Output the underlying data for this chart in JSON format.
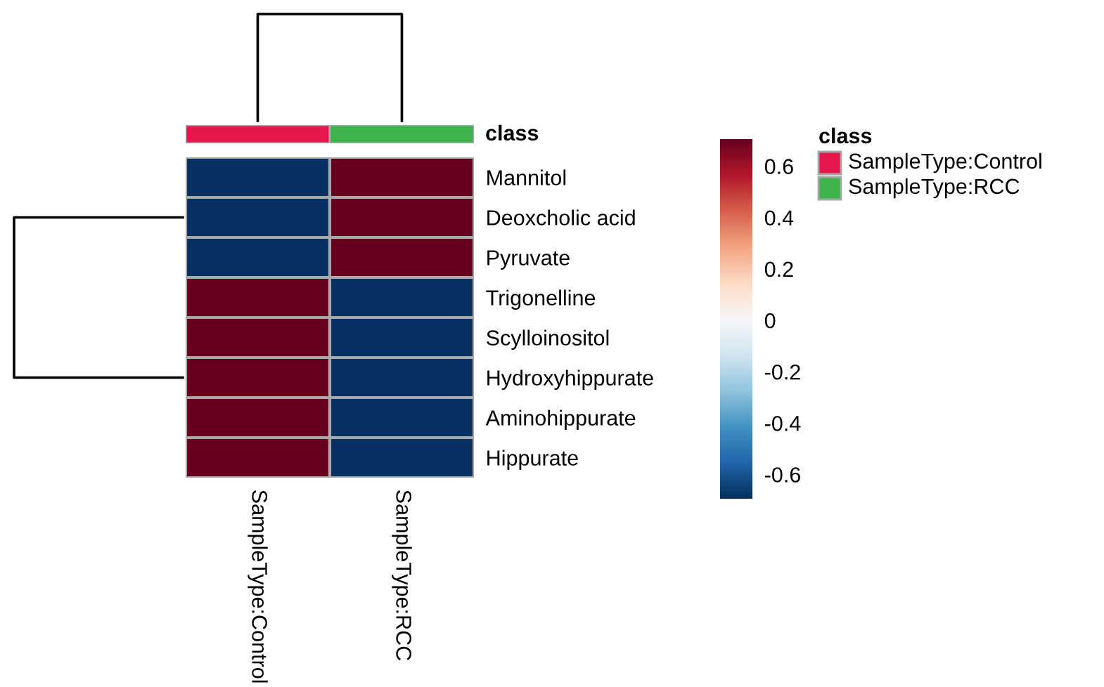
{
  "chart_data": {
    "type": "heatmap",
    "categories": [
      "SampleType:Control",
      "SampleType:RCC"
    ],
    "y_categories": [
      "Mannitol",
      "Deoxcholic acid",
      "Pyruvate",
      "Trigonelline",
      "Scylloinositol",
      "Hydroxyhippurate",
      "Aminohippurate",
      "Hippurate"
    ],
    "cells": [
      [
        -0.7,
        0.7
      ],
      [
        -0.7,
        0.7
      ],
      [
        -0.7,
        0.7
      ],
      [
        0.7,
        -0.7
      ],
      [
        0.7,
        -0.7
      ],
      [
        0.7,
        -0.7
      ],
      [
        0.7,
        -0.7
      ],
      [
        0.7,
        -0.7
      ]
    ],
    "clim": [
      -0.7,
      0.7
    ],
    "cticks": [
      {
        "value": 0.6,
        "label": "0.6"
      },
      {
        "value": 0.4,
        "label": "0.4"
      },
      {
        "value": 0.2,
        "label": "0.2"
      },
      {
        "value": 0,
        "label": "0"
      },
      {
        "value": -0.2,
        "label": "-0.2"
      },
      {
        "value": -0.4,
        "label": "-0.4"
      },
      {
        "value": -0.6,
        "label": "-0.6"
      }
    ],
    "annotations": [
      "class",
      "class",
      "SampleType:Control",
      "SampleType:RCC"
    ]
  }
}
